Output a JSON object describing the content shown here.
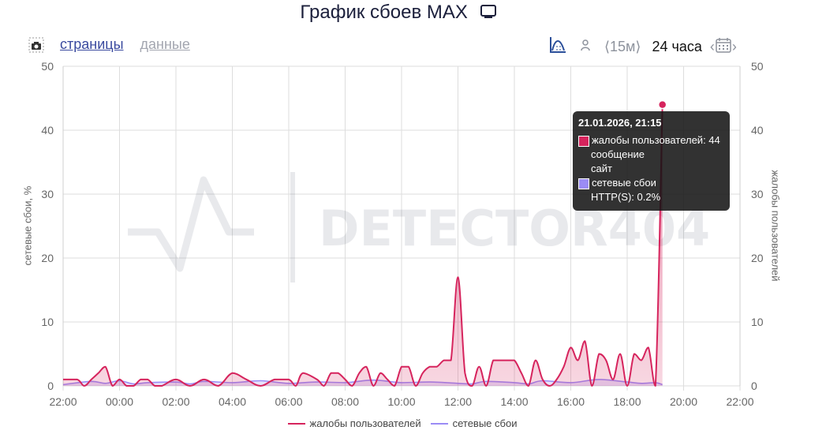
{
  "header": {
    "title": "График сбоев MAX"
  },
  "toolbar": {
    "tab_pages": "страницы",
    "tab_data": "данные",
    "range_15m": "⟨15м⟩",
    "range_24h": "24 часа",
    "cal_prev": "‹",
    "cal_next": "›"
  },
  "tooltip": {
    "title": "21.01.2026, 21:15",
    "line1": "жалобы пользователей: 44",
    "line2": "сообщение",
    "line3": "сайт",
    "line4": "сетевые сбои",
    "line5": "HTTP(S): 0.2%"
  },
  "watermark": "DETECTOR404",
  "colors": {
    "complaints": "#d6245d",
    "network": "#9b8cf5",
    "grid": "#dddddd",
    "tooltip_bg": "#141414"
  },
  "chart_data": {
    "type": "area",
    "title": "График сбоев MAX",
    "ylabel_left": "сетевые сбои, %",
    "ylabel_right": "жалобы пользователей",
    "ylim": [
      0,
      50
    ],
    "y_ticks": [
      "0",
      "10",
      "20",
      "30",
      "40",
      "50"
    ],
    "x_ticks": [
      "22:00",
      "00:00",
      "02:00",
      "04:00",
      "06:00",
      "08:00",
      "10:00",
      "12:00",
      "14:00",
      "16:00",
      "18:00",
      "20:00",
      "22:00"
    ],
    "x_range_hours": [
      0,
      24
    ],
    "series": [
      {
        "name": "жалобы пользователей",
        "x": [
          0,
          0.5,
          0.75,
          1,
          1.25,
          1.5,
          1.75,
          2,
          2.25,
          2.5,
          2.75,
          3,
          3.25,
          3.5,
          4,
          4.5,
          5,
          5.5,
          6,
          6.5,
          7,
          7.5,
          8,
          8.25,
          8.5,
          9,
          9.25,
          9.5,
          9.75,
          10,
          10.25,
          10.5,
          10.75,
          11,
          11.25,
          11.5,
          11.75,
          12,
          12.25,
          12.5,
          12.75,
          13,
          13.25,
          13.5,
          13.75,
          14,
          14.25,
          14.5,
          14.75,
          15,
          15.25,
          15.5,
          15.75,
          16,
          16.25,
          16.5,
          16.75,
          17,
          17.25,
          17.5,
          17.75,
          18,
          18.25,
          18.5,
          18.75,
          19,
          19.25,
          19.5,
          19.75,
          20,
          20.25,
          20.5,
          20.75,
          21,
          21.25
        ],
        "values": [
          1,
          1,
          0,
          1,
          2,
          3,
          0,
          1,
          0,
          0,
          1,
          1,
          0,
          0,
          1,
          0,
          1,
          0,
          2,
          1,
          0,
          1,
          1,
          0,
          2,
          1,
          0,
          2,
          2,
          1,
          0,
          2,
          3,
          0,
          2,
          1,
          0,
          3,
          3,
          0,
          2,
          3,
          3,
          4,
          4,
          17,
          2,
          0,
          3,
          0,
          4,
          4,
          4,
          4,
          2,
          0,
          4,
          1,
          0,
          1,
          3,
          6,
          4,
          7,
          0,
          5,
          4,
          1,
          5,
          0,
          5,
          4,
          6,
          0,
          44
        ],
        "color": "#d6245d"
      },
      {
        "name": "сетевые сбои",
        "x": [
          0,
          1,
          1.5,
          2,
          2.5,
          3,
          4,
          4.5,
          5,
          6,
          7,
          8,
          9,
          10,
          11,
          12,
          13,
          14,
          14.5,
          15,
          16,
          16.5,
          17,
          18,
          19,
          20,
          20.5,
          21,
          21.25
        ],
        "values": [
          0.2,
          0.7,
          0.4,
          0.8,
          0.3,
          0.5,
          0.6,
          0.3,
          0.7,
          0.5,
          0.8,
          0.4,
          0.6,
          0.5,
          0.9,
          0.5,
          0.6,
          0.4,
          0.3,
          0.7,
          0.5,
          0.3,
          0.8,
          0.5,
          1.0,
          0.6,
          0.4,
          0.5,
          0.2
        ],
        "color": "#9b8cf5"
      }
    ],
    "legend": {
      "position": "bottom",
      "items": [
        "жалобы пользователей",
        "сетевые сбои"
      ]
    },
    "grid": true
  }
}
